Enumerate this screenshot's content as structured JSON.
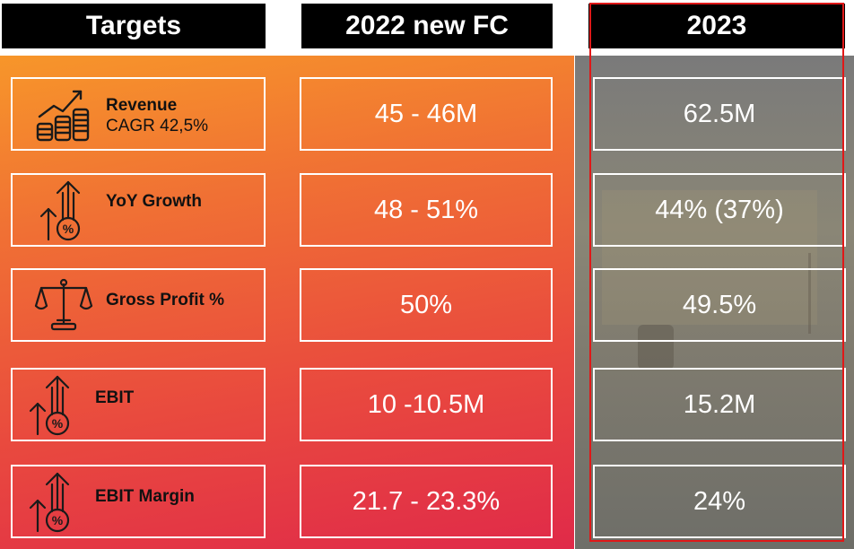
{
  "headers": {
    "targets": "Targets",
    "fc_2022": "2022 new FC",
    "year_2023": "2023"
  },
  "rows": [
    {
      "label": "Revenue",
      "sublabel": "CAGR 42,5%",
      "icon": "revenue-chart-coins-icon",
      "fc_2022": "45 - 46M",
      "value_2023": "62.5M"
    },
    {
      "label": "YoY Growth",
      "icon": "growth-percent-icon",
      "fc_2022": "48 - 51%",
      "value_2023": "44% (37%)"
    },
    {
      "label": "Gross Profit %",
      "icon": "balance-scale-icon",
      "fc_2022": "50%",
      "value_2023": "49.5%"
    },
    {
      "label": "EBIT",
      "icon": "growth-percent-icon",
      "fc_2022": "10 -10.5M",
      "value_2023": "15.2M"
    },
    {
      "label": "EBIT Margin",
      "icon": "growth-percent-icon",
      "fc_2022": "21.7 - 23.3%",
      "value_2023": "24%"
    }
  ],
  "colors": {
    "header_bg": "#000000",
    "highlight_frame": "#e01818",
    "gradient_top": "#f7962a",
    "gradient_bottom": "#e02a49",
    "label_text": "#111111"
  }
}
